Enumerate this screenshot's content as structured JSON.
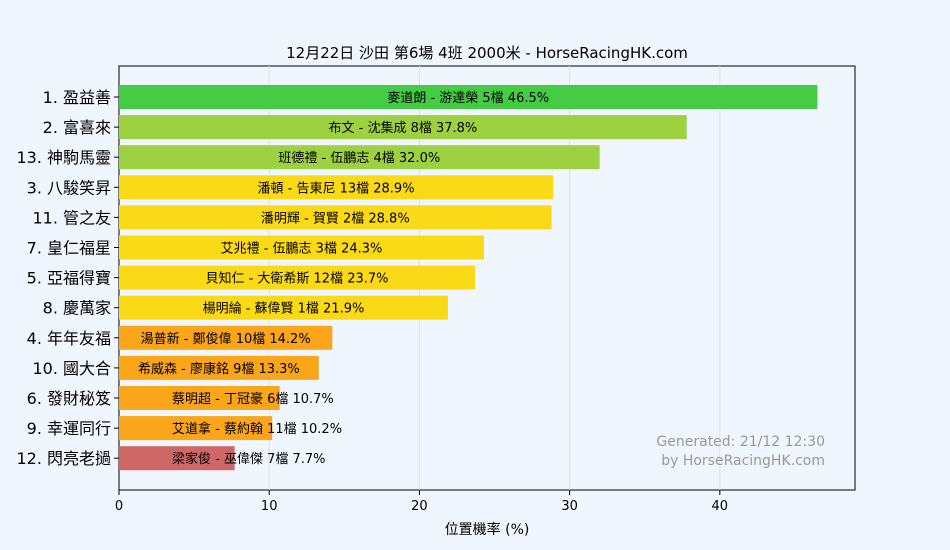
{
  "chart_data": {
    "type": "bar",
    "orientation": "horizontal",
    "title": "12月22日  沙田  第6場  4班  2000米 - HorseRacingHK.com",
    "xlabel": "位置機率 (%)",
    "ylabel": "",
    "xlim": [
      0,
      49
    ],
    "xticks": [
      0,
      10,
      20,
      30,
      40
    ],
    "grid": "vertical",
    "categories": [
      "1. 盈益善",
      "2. 富喜來",
      "13. 神駒馬靈",
      "3. 八駿笑昇",
      "11. 管之友",
      "7. 皇仁福星",
      "5. 亞福得寶",
      "8. 慶萬家",
      "4. 年年友福",
      "10. 國大合",
      "6. 發財秘笈",
      "9. 幸運同行",
      "12. 閃亮老撾"
    ],
    "values": [
      46.5,
      37.8,
      32.0,
      28.9,
      28.8,
      24.3,
      23.7,
      21.9,
      14.2,
      13.3,
      10.7,
      10.2,
      7.7
    ],
    "bar_labels": [
      "麥道朗 - 游達榮 5檔  46.5%",
      "布文 - 沈集成 8檔  37.8%",
      "班德禮 - 伍鵬志 4檔  32.0%",
      "潘頓 - 告東尼 13檔  28.9%",
      "潘明輝 - 賀賢 2檔  28.8%",
      "艾兆禮 - 伍鵬志 3檔  24.3%",
      "貝知仁 - 大衛希斯 12檔  23.7%",
      "楊明綸 - 蘇偉賢 1檔  21.9%",
      "湯普新 - 鄭俊偉 10檔  14.2%",
      "希威森 - 廖康銘 9檔  13.3%",
      "蔡明超 - 丁冠豪 6檔  10.7%",
      "艾道拿 - 蔡約翰 11檔  10.2%",
      "梁家俊 - 巫偉傑 7檔  7.7%"
    ],
    "colors": [
      "#44cc44",
      "#9ed142",
      "#9ed142",
      "#fad916",
      "#fad916",
      "#fad916",
      "#fad916",
      "#fad916",
      "#faa51a",
      "#faa51a",
      "#faa51a",
      "#faa51a",
      "#cf6766"
    ],
    "watermark": [
      "Generated: 21/12 12:30",
      "by HorseRacingHK.com"
    ]
  }
}
